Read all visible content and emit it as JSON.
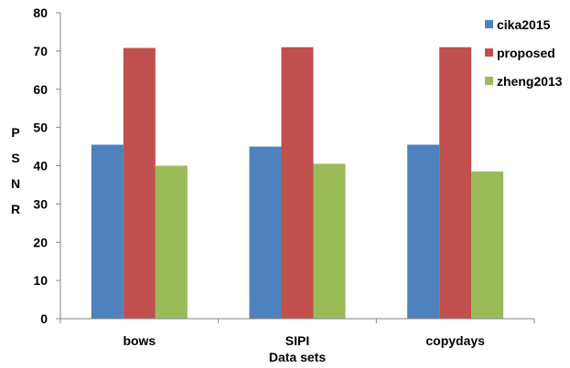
{
  "chart_data": {
    "type": "bar",
    "title": "",
    "xlabel": "Data sets",
    "ylabel": "PSNR",
    "categories": [
      "bows",
      "SIPI",
      "copydays"
    ],
    "series": [
      {
        "name": "cika2015",
        "values": [
          45.5,
          45.0,
          45.5
        ],
        "color": "#4F81BD"
      },
      {
        "name": "proposed",
        "values": [
          70.8,
          71.0,
          71.0
        ],
        "color": "#C0504D"
      },
      {
        "name": "zheng2013",
        "values": [
          40.0,
          40.5,
          38.5
        ],
        "color": "#9BBB59"
      }
    ],
    "ylim": [
      0,
      80
    ],
    "yticks": [
      "0",
      "10",
      "20",
      "30",
      "40",
      "50",
      "60",
      "70",
      "80"
    ],
    "grid": false,
    "legend_position": "right"
  }
}
